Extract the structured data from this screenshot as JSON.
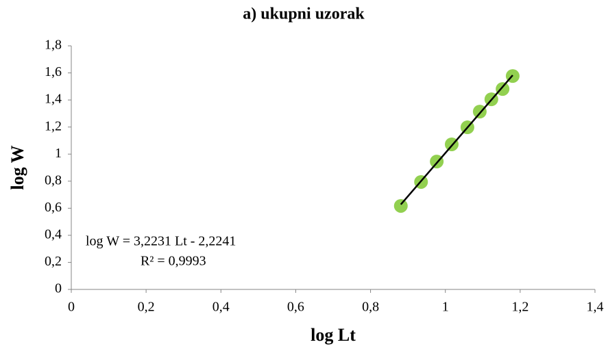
{
  "chart_data": {
    "type": "scatter",
    "title": "a) ukupni uzorak",
    "x_label": "log Lt",
    "y_label": "log W",
    "annotations": [
      "log W = 3,2231 Lt - 2,2241",
      "R² = 0,9993"
    ],
    "series": [
      {
        "color": "#92d050",
        "x": [
          0.881,
          0.935,
          0.977,
          1.017,
          1.059,
          1.092,
          1.123,
          1.153,
          1.18
        ],
        "values": [
          0.617,
          0.794,
          0.945,
          1.072,
          1.198,
          1.314,
          1.405,
          1.481,
          1.577
        ]
      }
    ],
    "trendline": true,
    "trendline_color": "#000000",
    "xlim": [
      0,
      1.4
    ],
    "xticks": [
      0,
      {
        "value": 0.2,
        "label": "0,2"
      },
      {
        "value": 0.4,
        "label": "0,4"
      },
      {
        "value": 0.6,
        "label": "0,6"
      },
      {
        "value": 0.8,
        "label": "0,8"
      },
      1,
      {
        "value": 1.2,
        "label": "1,2"
      },
      {
        "value": 1.4,
        "label": "1,4"
      }
    ],
    "ylim": [
      0,
      1.8
    ],
    "yticks": [
      0,
      {
        "value": 0.2,
        "label": "0,2"
      },
      {
        "value": 0.4,
        "label": "0,4"
      },
      {
        "value": 0.6,
        "label": "0,6"
      },
      {
        "value": 0.8,
        "label": "0,8"
      },
      1,
      {
        "value": 1.2,
        "label": "1,2"
      },
      {
        "value": 1.4,
        "label": "1,4"
      },
      {
        "value": 1.6,
        "label": "1,6"
      },
      {
        "value": 1.8,
        "label": "1,8"
      }
    ],
    "grid": false
  }
}
